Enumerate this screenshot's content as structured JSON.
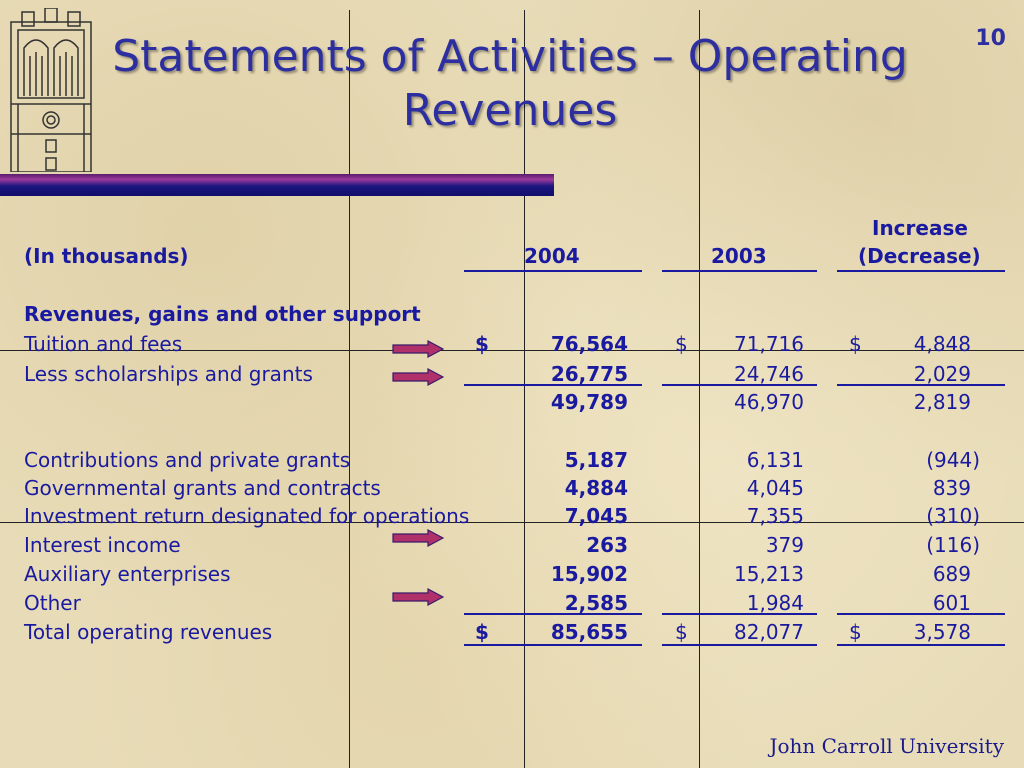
{
  "title": {
    "line1": "Statements of Activities – Operating",
    "line2": "Revenues"
  },
  "page_number": "10",
  "footer": "John Carroll University",
  "logo_icon": "tower-logo-icon",
  "arrow_icon": "arrow-right-icon",
  "colors": {
    "title": "#2d2fa0",
    "text": "#1a1aa0",
    "band": "#1c1680",
    "arrow": "#b0306a"
  },
  "table": {
    "units_label": "(In thousands)",
    "col_2004": "2004",
    "col_2003": "2003",
    "col_change_line1": "Increase",
    "col_change_line2": "(Decrease)",
    "section_heading": "Revenues, gains and other support",
    "rows": [
      {
        "label": "Tuition and fees",
        "currency_2004": "$",
        "v2004": "76,564",
        "currency_2003": "$",
        "v2003": "71,716",
        "currency_change": "$",
        "change": "4,848"
      },
      {
        "label": "Less scholarships and grants",
        "v2004": "26,775",
        "v2003": "24,746",
        "change": "2,029"
      },
      {
        "label": "",
        "v2004": "49,789",
        "v2003": "46,970",
        "change": "2,819"
      },
      {
        "label": "Contributions and private grants",
        "v2004": "5,187",
        "v2003": "6,131",
        "change": "(944)"
      },
      {
        "label": "Governmental grants and contracts",
        "v2004": "4,884",
        "v2003": "4,045",
        "change": "839"
      },
      {
        "label": "Investment return designated for operations",
        "v2004": "7,045",
        "v2003": "7,355",
        "change": "(310)"
      },
      {
        "label": "Interest income",
        "v2004": "263",
        "v2003": "379",
        "change": "(116)"
      },
      {
        "label": "Auxiliary enterprises",
        "v2004": "15,902",
        "v2003": "15,213",
        "change": "689"
      },
      {
        "label": "Other",
        "v2004": "2,585",
        "v2003": "1,984",
        "change": "601"
      },
      {
        "label": "Total operating revenues",
        "currency_2004": "$",
        "v2004": "85,655",
        "currency_2003": "$",
        "v2003": "82,077",
        "currency_change": "$",
        "change": "3,578"
      }
    ]
  }
}
